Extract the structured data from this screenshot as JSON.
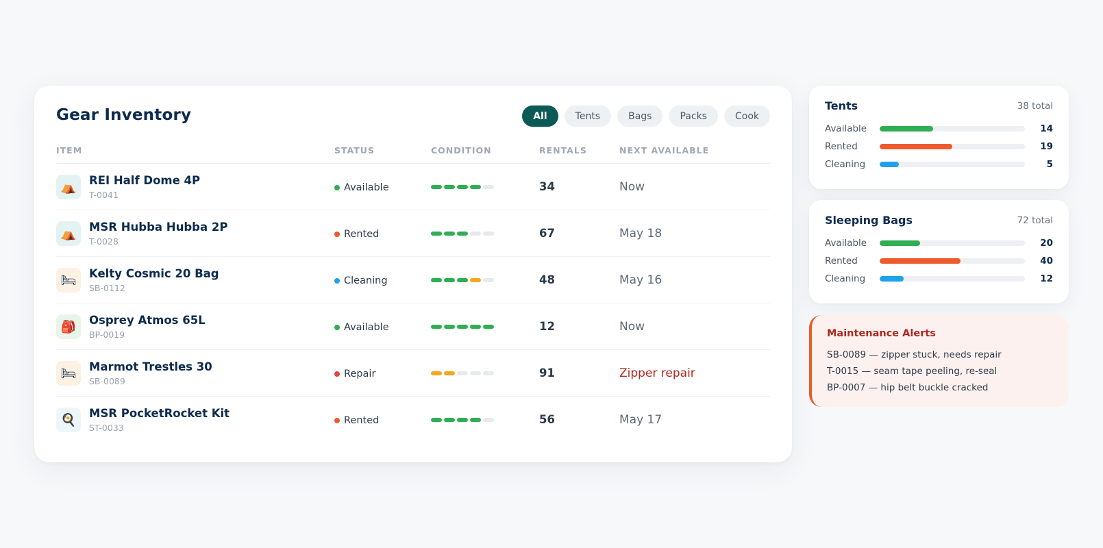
{
  "inventory": {
    "title": "Gear Inventory",
    "filters": [
      "All",
      "Tents",
      "Bags",
      "Packs",
      "Cook"
    ],
    "active_filter": "All",
    "columns": [
      "ITEM",
      "STATUS",
      "CONDITION",
      "RENTALS",
      "NEXT AVAILABLE"
    ],
    "rows": [
      {
        "name": "REI Half Dome 4P",
        "code": "T-0041",
        "icon": "tent-icon",
        "glyph": "⛺",
        "icon_bg": "#e4f3f1",
        "status": "Available",
        "status_color": "#2fae54",
        "condition": 4,
        "condition_color": "#2fae54",
        "rentals": "34",
        "next": "Now",
        "next_alert": false
      },
      {
        "name": "MSR Hubba Hubba 2P",
        "code": "T-0028",
        "icon": "tent-icon",
        "glyph": "⛺",
        "icon_bg": "#e4f3f1",
        "status": "Rented",
        "status_color": "#ef5a2c",
        "condition": 3,
        "condition_color": "#2fae54",
        "rentals": "67",
        "next": "May 18",
        "next_alert": false
      },
      {
        "name": "Kelty Cosmic 20 Bag",
        "code": "SB-0112",
        "icon": "sleeping-bag-icon",
        "glyph": "🛏",
        "icon_bg": "#fdf1e3",
        "status": "Cleaning",
        "status_color": "#1ba3ec",
        "condition": 4,
        "condition_color": "#2fae54",
        "condition_last_color": "#f1a91e",
        "rentals": "48",
        "next": "May 16",
        "next_alert": false
      },
      {
        "name": "Osprey Atmos 65L",
        "code": "BP-0019",
        "icon": "backpack-icon",
        "glyph": "🎒",
        "icon_bg": "#e8f5ea",
        "status": "Available",
        "status_color": "#2fae54",
        "condition": 5,
        "condition_color": "#2fae54",
        "rentals": "12",
        "next": "Now",
        "next_alert": false
      },
      {
        "name": "Marmot Trestles 30",
        "code": "SB-0089",
        "icon": "sleeping-bag-icon",
        "glyph": "🛏",
        "icon_bg": "#fdf1e3",
        "status": "Repair",
        "status_color": "#e0483e",
        "condition": 2,
        "condition_color": "#f1a91e",
        "rentals": "91",
        "next": "Zipper repair",
        "next_alert": true
      },
      {
        "name": "MSR PocketRocket Kit",
        "code": "ST-0033",
        "icon": "cooking-pan-icon",
        "glyph": "🍳",
        "icon_bg": "#eef6fb",
        "status": "Rented",
        "status_color": "#ef5a2c",
        "condition": 4,
        "condition_color": "#2fae54",
        "rentals": "56",
        "next": "May 17",
        "next_alert": false
      }
    ]
  },
  "summaries": [
    {
      "title": "Tents",
      "total": "38 total",
      "rows": [
        {
          "label": "Available",
          "value": "14",
          "fraction": 0.368,
          "color": "#2fae54"
        },
        {
          "label": "Rented",
          "value": "19",
          "fraction": 0.5,
          "color": "#ef5a2c"
        },
        {
          "label": "Cleaning",
          "value": "5",
          "fraction": 0.132,
          "color": "#1ba3ec"
        }
      ]
    },
    {
      "title": "Sleeping Bags",
      "total": "72 total",
      "rows": [
        {
          "label": "Available",
          "value": "20",
          "fraction": 0.278,
          "color": "#2fae54"
        },
        {
          "label": "Rented",
          "value": "40",
          "fraction": 0.556,
          "color": "#ef5a2c"
        },
        {
          "label": "Cleaning",
          "value": "12",
          "fraction": 0.167,
          "color": "#1ba3ec"
        }
      ]
    }
  ],
  "alerts": {
    "title": "Maintenance Alerts",
    "items": [
      "SB-0089 — zipper stuck, needs repair",
      "T-0015 — seam tape peeling, re-seal",
      "BP-0007 — hip belt buckle cracked"
    ]
  }
}
